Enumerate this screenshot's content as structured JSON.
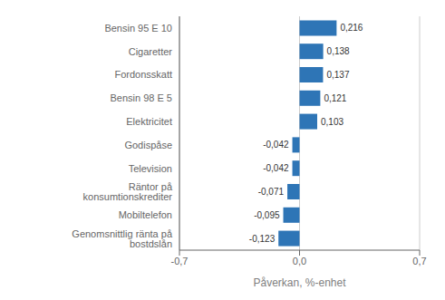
{
  "chart_data": {
    "type": "bar",
    "orientation": "horizontal",
    "categories": [
      "Genomsnittlig ränta på bostdslån",
      "Mobiltelefon",
      "Räntor på konsumtionskrediter",
      "Television",
      "Godispåse",
      "Elektricitet",
      "Bensin 98 E 5",
      "Fordonsskatt",
      "Cigaretter",
      "Bensin 95 E 10"
    ],
    "values": [
      -0.123,
      -0.095,
      -0.071,
      -0.042,
      -0.042,
      0.103,
      0.121,
      0.137,
      0.138,
      0.216
    ],
    "value_labels": [
      "-0,123",
      "-0,095",
      "-0,071",
      "-0,042",
      "-0,042",
      "0,103",
      "0,121",
      "0,137",
      "0,138",
      "0,216"
    ],
    "data_labels": true,
    "color": "#2E75B6",
    "xlabel": "Påverkan, %-enhet",
    "xlim": [
      -0.7,
      0.7
    ],
    "xticks": [
      {
        "value": -0.7,
        "label": "-0,7"
      },
      {
        "value": 0.0,
        "label": "0,0"
      },
      {
        "value": 0.7,
        "label": "0,7"
      }
    ],
    "grid": true
  }
}
